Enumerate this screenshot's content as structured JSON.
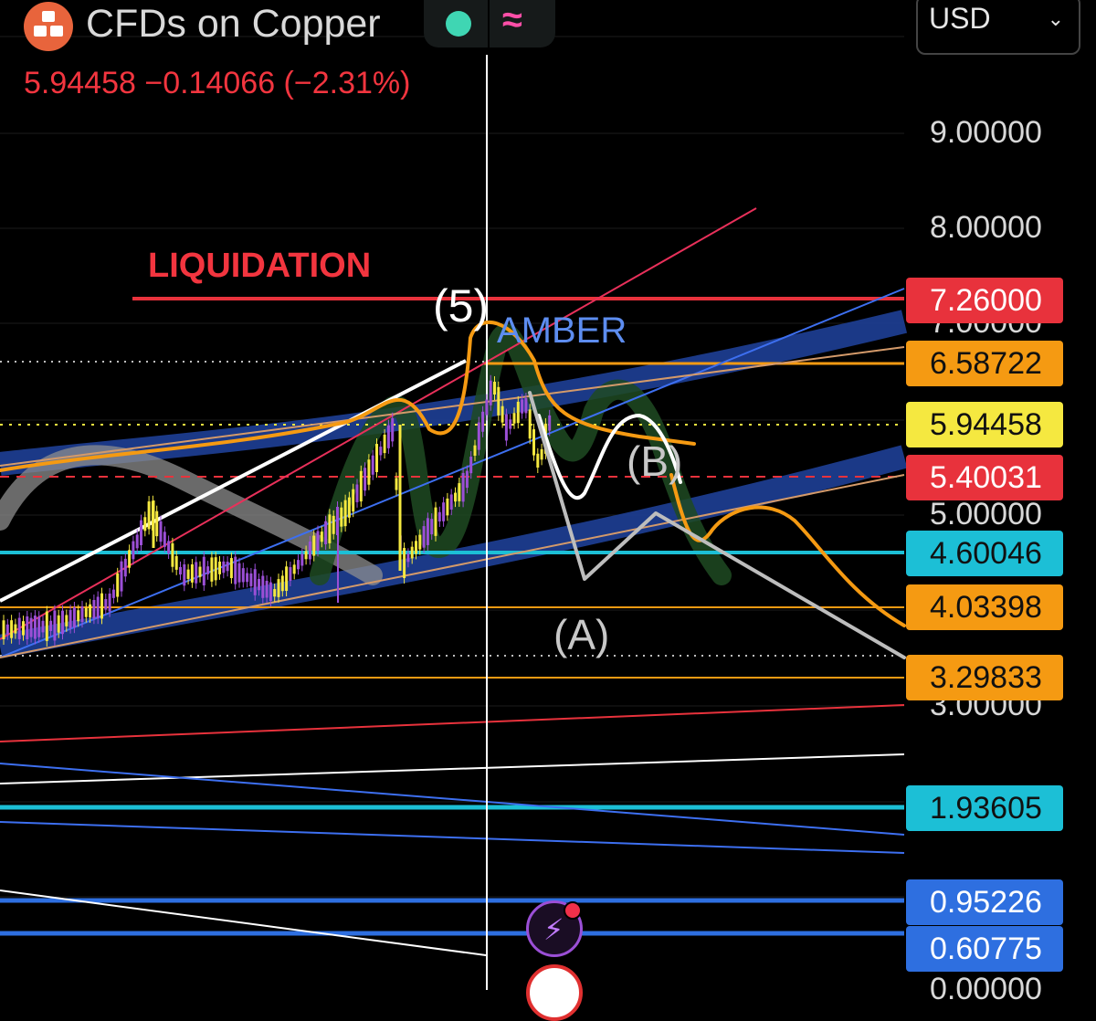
{
  "header": {
    "title": "CFDs on Copper",
    "wave_symbol": "≈",
    "quote": "5.94458  −0.14066 (−2.31%)",
    "currency": "USD"
  },
  "axis": {
    "labels": [
      {
        "text": "9.00000",
        "y": 146
      },
      {
        "text": "8.00000",
        "y": 250
      },
      {
        "text": "7.00000",
        "y": 354
      },
      {
        "text": "5.00000",
        "y": 564
      },
      {
        "text": "3.00000",
        "y": 773
      },
      {
        "text": "0.00000",
        "y": 1084
      }
    ]
  },
  "price_badges": [
    {
      "text": "7.26000",
      "bg": "#e8323c",
      "fg": "#ffffff"
    },
    {
      "text": "6.58722",
      "bg": "#f59a12",
      "fg": "#111111"
    },
    {
      "text": "5.94458",
      "bg": "#f5e840",
      "fg": "#111111"
    },
    {
      "text": "5.40031",
      "bg": "#e8323c",
      "fg": "#ffffff"
    },
    {
      "text": "4.60046",
      "bg": "#1cbfd6",
      "fg": "#111111"
    },
    {
      "text": "4.03398",
      "bg": "#f59a12",
      "fg": "#111111"
    },
    {
      "text": "3.29833",
      "bg": "#f59a12",
      "fg": "#111111"
    },
    {
      "text": "1.93605",
      "bg": "#1cbfd6",
      "fg": "#111111"
    },
    {
      "text": "0.95226",
      "bg": "#2e6fe0",
      "fg": "#ffffff"
    },
    {
      "text": "0.60775",
      "bg": "#2e6fe0",
      "fg": "#ffffff"
    }
  ],
  "annotations": {
    "liquidation": "LIQUIDATION",
    "wave5": "(5)",
    "amber": "AMBER",
    "waveA": "(A)",
    "waveB": "(B)"
  },
  "icons": {
    "bolt": "⚡"
  },
  "colors": {
    "down": "#f2353f",
    "up": "#3fd6b3",
    "candle_up": "#f5e840",
    "candle_down": "#9b4fd6"
  }
}
